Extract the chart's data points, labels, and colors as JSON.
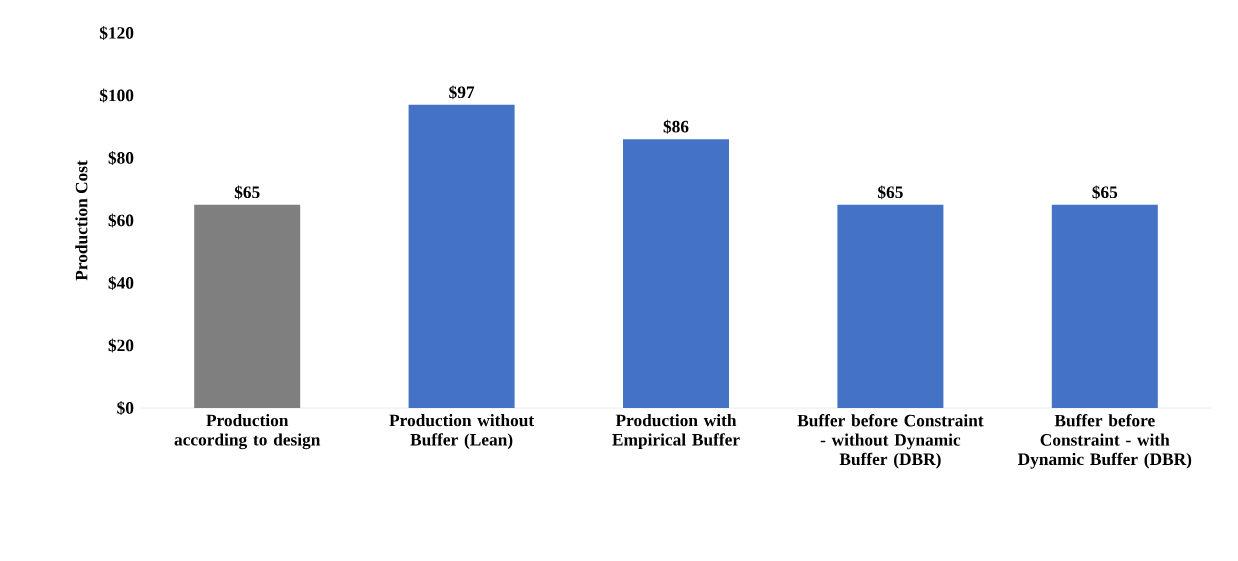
{
  "chart_data": {
    "type": "bar",
    "ylabel": "Production Cost",
    "categories": [
      "Production according to design",
      "Production without Buffer (Lean)",
      "Production with Empirical Buffer",
      "Buffer before Constraint - without Dynamic Buffer (DBR)",
      "Buffer before Constraint - with Dynamic Buffer (DBR)"
    ],
    "values": [
      65,
      97,
      86,
      65,
      65
    ],
    "colors": [
      "#7f7f7f",
      "#4472c4",
      "#4472c4",
      "#4472c4",
      "#4472c4"
    ],
    "value_labels": [
      "$65",
      "$97",
      "$86",
      "$65",
      "$65"
    ],
    "ylim": [
      0,
      120
    ],
    "yticks": [
      {
        "value": 0,
        "label": "$0"
      },
      {
        "value": 20,
        "label": "$20"
      },
      {
        "value": 40,
        "label": "$40"
      },
      {
        "value": 60,
        "label": "$60"
      },
      {
        "value": 80,
        "label": "$80"
      },
      {
        "value": 100,
        "label": "$100"
      },
      {
        "value": 120,
        "label": "$120"
      }
    ]
  }
}
